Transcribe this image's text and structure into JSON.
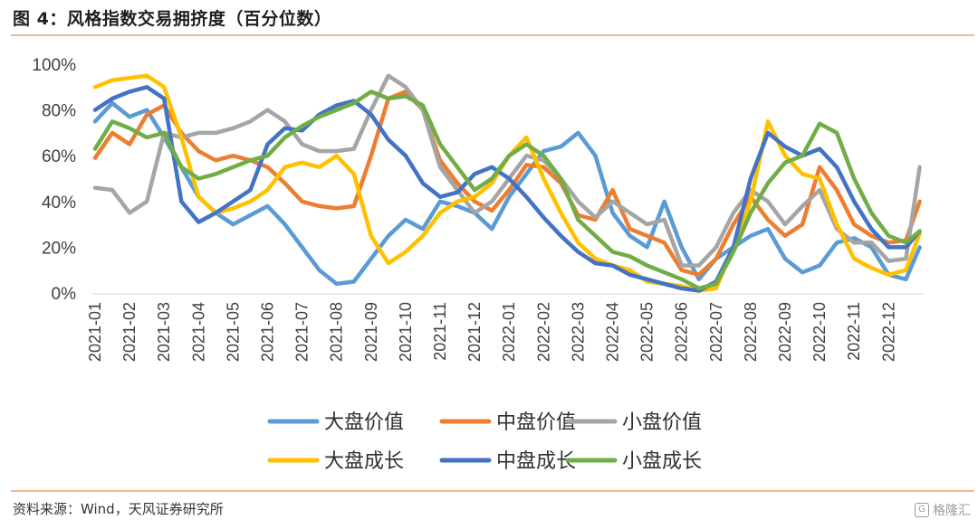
{
  "header": {
    "title": "图 4：风格指数交易拥挤度（百分位数）"
  },
  "footer": {
    "source": "资料来源：Wind，天风证券研究所",
    "watermark": "格隆汇"
  },
  "chart_data": {
    "type": "line",
    "title": "",
    "xlabel": "",
    "ylabel": "",
    "ylim": [
      0,
      100
    ],
    "yticks": [
      "0%",
      "20%",
      "40%",
      "60%",
      "80%",
      "100%"
    ],
    "xticks": [
      "2021-01",
      "2021-02",
      "2021-03",
      "2021-04",
      "2021-05",
      "2021-06",
      "2021-07",
      "2021-08",
      "2021-09",
      "2021-10",
      "2021-11",
      "2021-12",
      "2022-01",
      "2022-02",
      "2022-03",
      "2022-04",
      "2022-05",
      "2022-06",
      "2022-07",
      "2022-08",
      "2022-09",
      "2022-10",
      "2022-11",
      "2022-12"
    ],
    "x_month_offset": [
      0,
      0.5,
      1,
      1.5,
      2,
      2.5,
      3,
      3.5,
      4,
      4.5,
      5,
      5.5,
      6,
      6.5,
      7,
      7.5,
      8,
      8.5,
      9,
      9.5,
      10,
      10.5,
      11,
      11.5,
      12,
      12.5,
      13,
      13.5,
      14,
      14.5,
      15,
      15.5,
      16,
      16.5,
      17,
      17.5,
      18,
      18.5,
      19,
      19.5,
      20,
      20.5,
      21,
      21.5,
      22,
      22.5,
      23,
      23.5,
      23.9
    ],
    "legend_position": "bottom",
    "grid": false,
    "series": [
      {
        "name": "大盘价值",
        "color": "#5b9bd5",
        "values": [
          75,
          83,
          77,
          80,
          68,
          55,
          42,
          35,
          30,
          34,
          38,
          30,
          20,
          10,
          4,
          5,
          15,
          25,
          32,
          28,
          40,
          38,
          35,
          28,
          42,
          52,
          62,
          64,
          70,
          60,
          35,
          25,
          20,
          40,
          20,
          6,
          15,
          20,
          25,
          28,
          15,
          9,
          12,
          22,
          24,
          20,
          8,
          6,
          20
        ]
      },
      {
        "name": "中盘价值",
        "color": "#ed7d31",
        "values": [
          59,
          70,
          65,
          78,
          82,
          70,
          62,
          58,
          60,
          58,
          55,
          48,
          40,
          38,
          37,
          38,
          60,
          85,
          88,
          80,
          58,
          48,
          40,
          36,
          45,
          56,
          55,
          48,
          34,
          32,
          45,
          28,
          25,
          22,
          10,
          8,
          15,
          30,
          42,
          32,
          25,
          30,
          55,
          45,
          30,
          25,
          22,
          23,
          40
        ]
      },
      {
        "name": "小盘价值",
        "color": "#a5a5a5",
        "values": [
          46,
          45,
          35,
          40,
          70,
          68,
          70,
          70,
          72,
          75,
          80,
          75,
          65,
          62,
          62,
          63,
          80,
          95,
          90,
          80,
          55,
          45,
          35,
          40,
          50,
          60,
          58,
          50,
          40,
          33,
          40,
          35,
          30,
          32,
          12,
          12,
          20,
          35,
          45,
          40,
          30,
          38,
          45,
          28,
          22,
          22,
          14,
          15,
          55
        ]
      },
      {
        "name": "大盘成长",
        "color": "#ffc000",
        "values": [
          90,
          93,
          94,
          95,
          90,
          68,
          42,
          35,
          37,
          40,
          45,
          55,
          57,
          55,
          60,
          52,
          25,
          13,
          18,
          25,
          35,
          40,
          42,
          48,
          60,
          68,
          50,
          35,
          22,
          15,
          12,
          10,
          5,
          4,
          3,
          1,
          2,
          20,
          40,
          75,
          60,
          52,
          50,
          30,
          15,
          11,
          8,
          10,
          26
        ]
      },
      {
        "name": "中盘成长",
        "color": "#4472c4",
        "values": [
          80,
          85,
          88,
          90,
          85,
          40,
          31,
          35,
          40,
          45,
          65,
          72,
          71,
          78,
          82,
          84,
          78,
          67,
          60,
          48,
          42,
          44,
          52,
          55,
          50,
          42,
          33,
          25,
          18,
          13,
          12,
          8,
          6,
          4,
          2,
          1,
          5,
          20,
          50,
          70,
          64,
          60,
          63,
          55,
          40,
          28,
          20,
          20,
          27
        ]
      },
      {
        "name": "小盘成长",
        "color": "#70ad47",
        "values": [
          63,
          75,
          72,
          68,
          70,
          55,
          50,
          52,
          55,
          58,
          60,
          68,
          73,
          77,
          80,
          83,
          88,
          85,
          86,
          82,
          65,
          55,
          45,
          50,
          60,
          65,
          60,
          50,
          32,
          25,
          18,
          16,
          12,
          9,
          6,
          2,
          4,
          18,
          35,
          48,
          57,
          60,
          74,
          70,
          50,
          35,
          25,
          22,
          27
        ]
      }
    ]
  }
}
